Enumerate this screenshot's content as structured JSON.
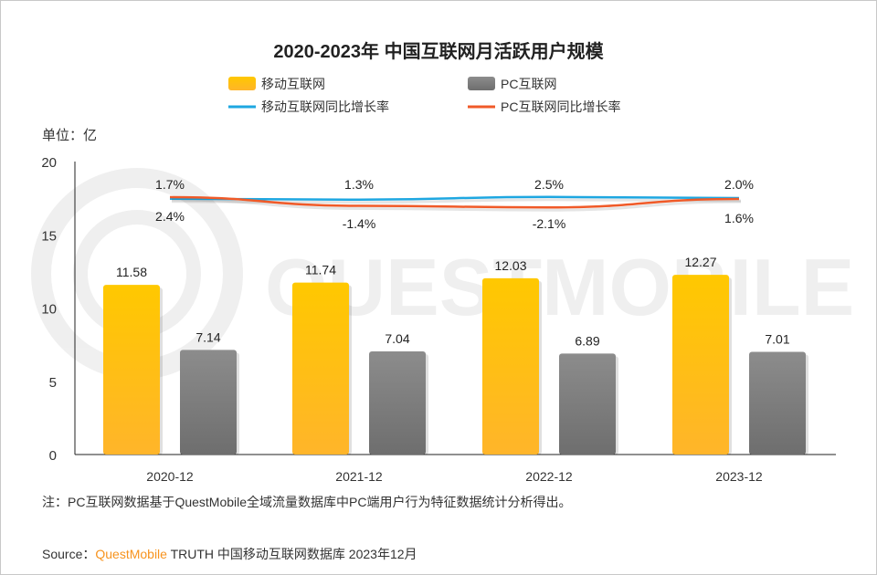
{
  "chart_data": {
    "type": "bar",
    "title": "2020-2023年 中国互联网月活跃用户规模",
    "unit_label": "单位：亿",
    "categories": [
      "2020-12",
      "2021-12",
      "2022-12",
      "2023-12"
    ],
    "ylim": [
      0,
      20
    ],
    "yticks": [
      0,
      5,
      10,
      15,
      20
    ],
    "grid": false,
    "legend_position": "top",
    "series": [
      {
        "name": "移动互联网",
        "kind": "bar",
        "color": "#ffc000",
        "values": [
          11.58,
          11.74,
          12.03,
          12.27
        ]
      },
      {
        "name": "PC互联网",
        "kind": "bar",
        "color": "#7f7f7f",
        "values": [
          7.14,
          7.04,
          6.89,
          7.01
        ]
      },
      {
        "name": "移动互联网同比增长率",
        "kind": "line",
        "color": "#1ea7e1",
        "unit": "%",
        "values": [
          1.7,
          1.3,
          2.5,
          2.0
        ]
      },
      {
        "name": "PC互联网同比增长率",
        "kind": "line",
        "color": "#f05a28",
        "unit": "%",
        "values": [
          2.4,
          -1.4,
          -2.1,
          1.6
        ]
      }
    ]
  },
  "watermark": "QUESTMOBILE",
  "footer": {
    "note": "注：PC互联网数据基于QuestMobile全域流量数据库中PC端用户行为特征数据统计分析得出。",
    "source_prefix": "Source：",
    "source_brand": "QuestMobile",
    "source_rest": " TRUTH 中国移动互联网数据库 2023年12月"
  }
}
